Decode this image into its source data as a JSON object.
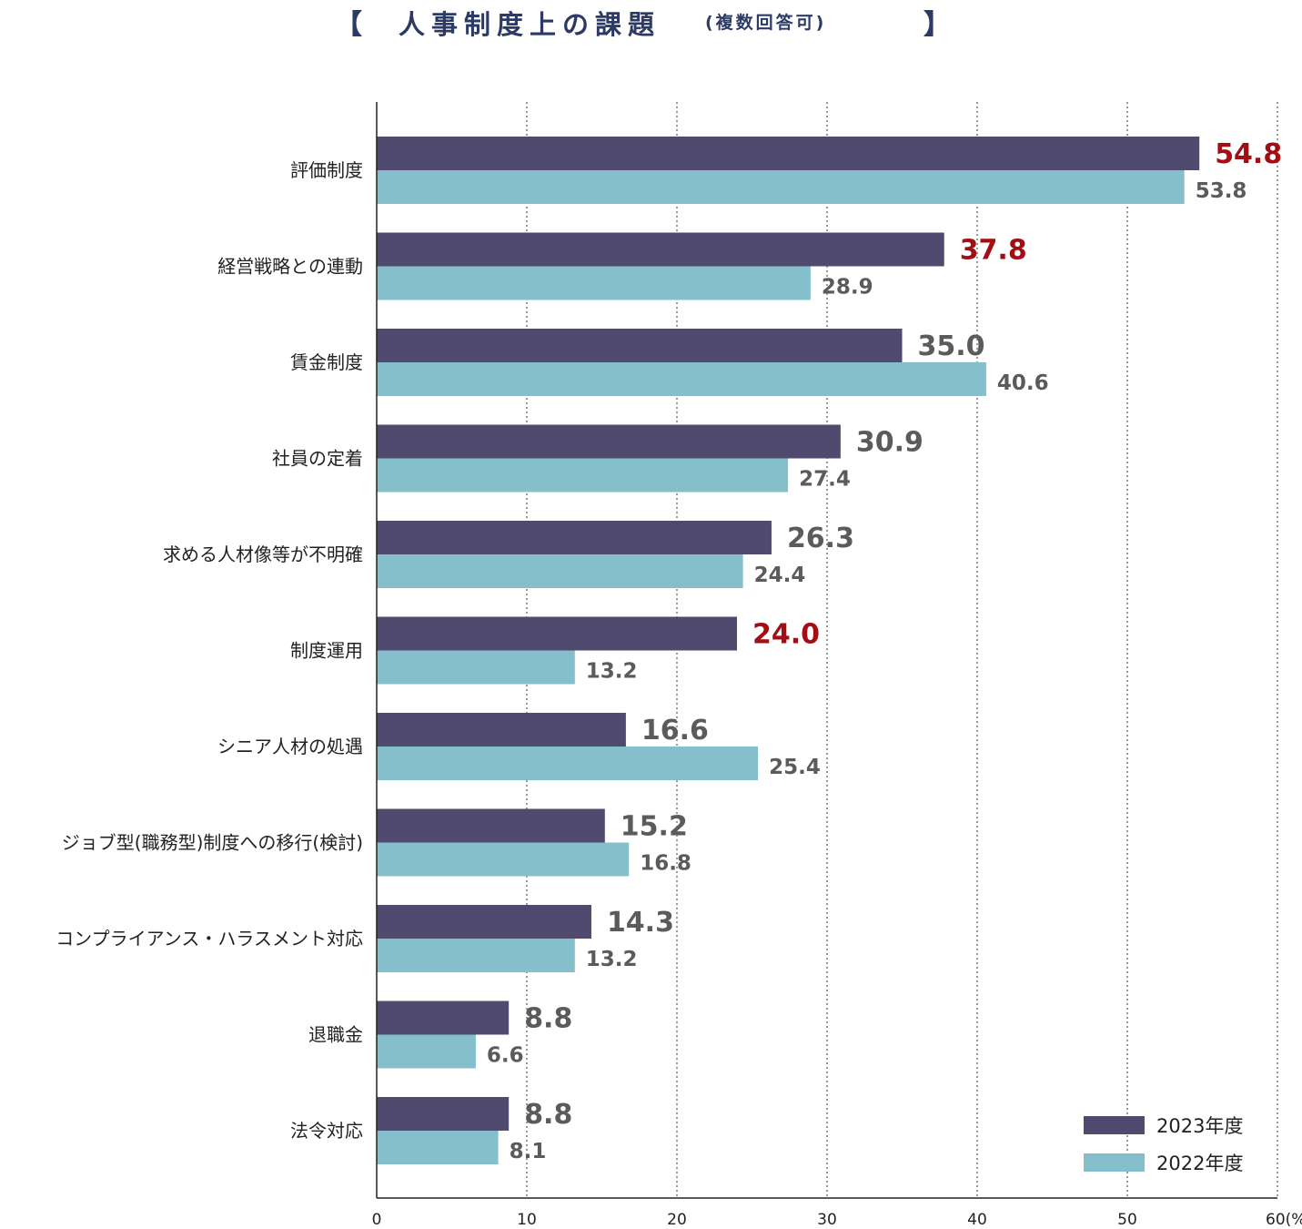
{
  "title": {
    "open_bracket": "【",
    "main": "人事制度上の課題",
    "sub": "(複数回答可)",
    "close_bracket": "】"
  },
  "colors": {
    "series_2023": "#4f4a6e",
    "series_2022": "#85bfcc",
    "highlight": "#a30e14",
    "value_text": "#5b5b5b",
    "title": "#2c3a66"
  },
  "chart_data": {
    "type": "bar",
    "orientation": "horizontal",
    "title": "人事制度上の課題(複数回答可)",
    "categories": [
      "評価制度",
      "経営戦略との連動",
      "賃金制度",
      "社員の定着",
      "求める人材像等が不明確",
      "制度運用",
      "シニア人材の処遇",
      "ジョブ型(職務型)制度への移行(検討)",
      "コンプライアンス・ハラスメント対応",
      "退職金",
      "法令対応"
    ],
    "series": [
      {
        "name": "2023年度",
        "values": [
          54.8,
          37.8,
          35.0,
          30.9,
          26.3,
          24.0,
          16.6,
          15.2,
          14.3,
          8.8,
          8.8
        ],
        "labels": [
          "54.8",
          "37.8",
          "35.0",
          "30.9",
          "26.3",
          "24.0",
          "16.6",
          "15.2",
          "14.3",
          "8.8",
          "8.8"
        ]
      },
      {
        "name": "2022年度",
        "values": [
          53.8,
          28.9,
          40.6,
          27.4,
          24.4,
          13.2,
          25.4,
          16.8,
          13.2,
          6.6,
          8.1
        ],
        "labels": [
          "53.8",
          "28.9",
          "40.6",
          "27.4",
          "24.4",
          "13.2",
          "25.4",
          "16.8",
          "13.2",
          "6.6",
          "8.1"
        ]
      }
    ],
    "highlighted_2023_indices": [
      0,
      1,
      5
    ],
    "xlim": [
      0,
      60
    ],
    "xticks": [
      "0",
      "10",
      "20",
      "30",
      "40",
      "50",
      "60(%)"
    ],
    "grid": "vertical dotted",
    "legend_position": "bottom-right"
  }
}
